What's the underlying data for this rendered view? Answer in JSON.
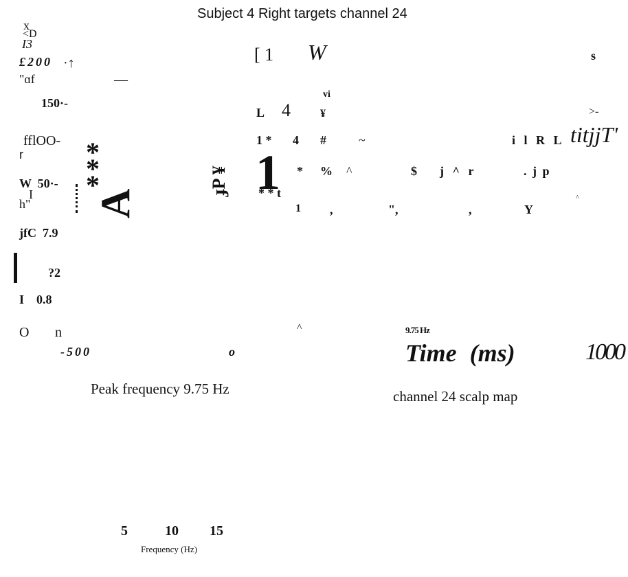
{
  "title": "Subject 4 Right targets channel 24",
  "labels": [
    "x",
    "<D",
    "I3",
    "£200",
    "·↑",
    "—",
    "\"ɑf",
    "150·-",
    "[ 1",
    "W",
    "s",
    "vi",
    "L",
    "4",
    "¥",
    ">-",
    "fflOO-",
    "r",
    "1 *",
    "4",
    "#",
    "~",
    "i l R L",
    "titjjT'",
    "*\n*\n*",
    "A",
    "ɟP ¥",
    "W  50·-",
    "I",
    "h\"",
    "1",
    "*",
    "%",
    "^",
    "$",
    "j ^ r",
    ". j p",
    "* * t",
    "1",
    ",",
    "\",",
    ",",
    "Y",
    "^",
    "jfC  7.9",
    "?2",
    "I    0.8",
    "^",
    "9.75 Hz",
    "O",
    "n",
    "-500",
    "o",
    "Time (ms)",
    "1000",
    "Peak frequency 9.75 Hz",
    "channel 24 scalp map",
    "5",
    "10",
    "15",
    "Frequency (Hz)"
  ]
}
